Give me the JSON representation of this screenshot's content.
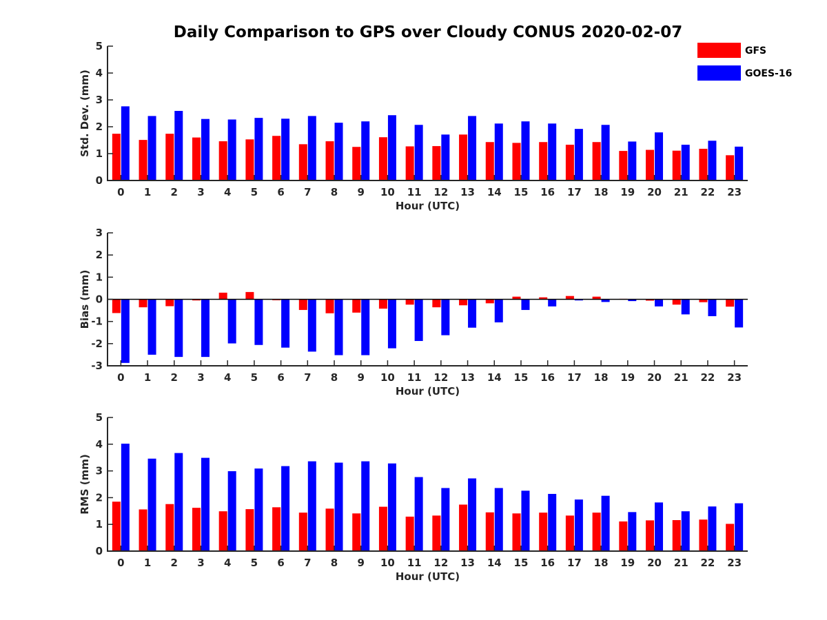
{
  "figure": {
    "title": "Daily Comparison to GPS over Cloudy CONUS 2020-02-07"
  },
  "legend": {
    "placement": "top-right",
    "items": [
      {
        "label": "GFS",
        "color": "#ff0000"
      },
      {
        "label": "GOES-16",
        "color": "#0000ff"
      }
    ]
  },
  "chart_data": [
    {
      "type": "bar",
      "xlabel": "Hour (UTC)",
      "ylabel": "Std. Dev. (mm)",
      "ylim": [
        0,
        5
      ],
      "yticks": [
        0,
        1,
        2,
        3,
        4,
        5
      ],
      "grid": false,
      "categories": [
        "0",
        "1",
        "2",
        "3",
        "4",
        "5",
        "6",
        "7",
        "8",
        "9",
        "10",
        "11",
        "12",
        "13",
        "14",
        "15",
        "16",
        "17",
        "18",
        "19",
        "20",
        "21",
        "22",
        "23"
      ],
      "series": [
        {
          "name": "GFS",
          "color": "#ff0000",
          "values": [
            1.74,
            1.51,
            1.74,
            1.6,
            1.46,
            1.53,
            1.66,
            1.35,
            1.46,
            1.25,
            1.61,
            1.27,
            1.28,
            1.71,
            1.43,
            1.4,
            1.43,
            1.33,
            1.43,
            1.1,
            1.14,
            1.11,
            1.18,
            0.94
          ]
        },
        {
          "name": "GOES-16",
          "color": "#0000ff",
          "values": [
            2.76,
            2.4,
            2.59,
            2.29,
            2.27,
            2.33,
            2.3,
            2.4,
            2.15,
            2.2,
            2.43,
            2.07,
            1.71,
            2.4,
            2.12,
            2.2,
            2.12,
            1.92,
            2.07,
            1.45,
            1.79,
            1.33,
            1.48,
            1.26
          ]
        }
      ]
    },
    {
      "type": "bar",
      "xlabel": "Hour (UTC)",
      "ylabel": "Bias (mm)",
      "ylim": [
        -3,
        3
      ],
      "yticks": [
        -3,
        -2,
        -1,
        0,
        1,
        2,
        3
      ],
      "grid": false,
      "zero_line": true,
      "categories": [
        "0",
        "1",
        "2",
        "3",
        "4",
        "5",
        "6",
        "7",
        "8",
        "9",
        "10",
        "11",
        "12",
        "13",
        "14",
        "15",
        "16",
        "17",
        "18",
        "19",
        "20",
        "21",
        "22",
        "23"
      ],
      "series": [
        {
          "name": "GFS",
          "color": "#ff0000",
          "values": [
            -0.62,
            -0.36,
            -0.31,
            -0.05,
            0.3,
            0.33,
            -0.04,
            -0.48,
            -0.63,
            -0.6,
            -0.42,
            -0.24,
            -0.36,
            -0.27,
            -0.18,
            0.12,
            0.09,
            0.15,
            0.12,
            0.02,
            -0.06,
            -0.24,
            -0.13,
            -0.33
          ]
        },
        {
          "name": "GOES-16",
          "color": "#0000ff",
          "values": [
            -2.87,
            -2.5,
            -2.6,
            -2.6,
            -1.99,
            -2.06,
            -2.18,
            -2.36,
            -2.52,
            -2.52,
            -2.21,
            -1.88,
            -1.62,
            -1.28,
            -1.04,
            -0.48,
            -0.32,
            -0.05,
            -0.12,
            -0.08,
            -0.32,
            -0.68,
            -0.76,
            -1.27
          ]
        }
      ]
    },
    {
      "type": "bar",
      "xlabel": "Hour (UTC)",
      "ylabel": "RMS (mm)",
      "ylim": [
        0,
        5
      ],
      "yticks": [
        0,
        1,
        2,
        3,
        4,
        5
      ],
      "grid": false,
      "categories": [
        "0",
        "1",
        "2",
        "3",
        "4",
        "5",
        "6",
        "7",
        "8",
        "9",
        "10",
        "11",
        "12",
        "13",
        "14",
        "15",
        "16",
        "17",
        "18",
        "19",
        "20",
        "21",
        "22",
        "23"
      ],
      "series": [
        {
          "name": "GFS",
          "color": "#ff0000",
          "values": [
            1.85,
            1.56,
            1.76,
            1.62,
            1.49,
            1.57,
            1.64,
            1.44,
            1.59,
            1.41,
            1.66,
            1.29,
            1.33,
            1.74,
            1.45,
            1.41,
            1.44,
            1.33,
            1.44,
            1.11,
            1.15,
            1.16,
            1.18,
            1.02
          ]
        },
        {
          "name": "GOES-16",
          "color": "#0000ff",
          "values": [
            4.02,
            3.46,
            3.67,
            3.49,
            2.99,
            3.09,
            3.18,
            3.36,
            3.31,
            3.36,
            3.28,
            2.77,
            2.36,
            2.72,
            2.36,
            2.26,
            2.14,
            1.93,
            2.07,
            1.46,
            1.82,
            1.49,
            1.67,
            1.79
          ]
        }
      ]
    }
  ]
}
